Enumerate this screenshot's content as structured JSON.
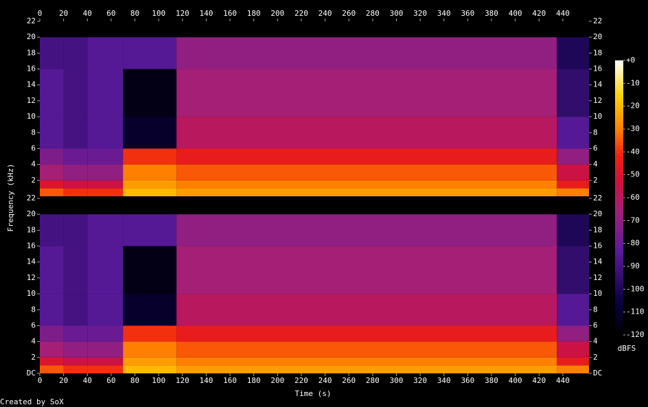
{
  "chart_data": {
    "type": "spectrogram",
    "xlabel": "Time (s)",
    "ylabel": "Frequency (kHz)",
    "xlim": [
      0,
      462
    ],
    "xticks": [
      0,
      20,
      40,
      60,
      80,
      100,
      120,
      140,
      160,
      180,
      200,
      220,
      240,
      260,
      280,
      300,
      320,
      340,
      360,
      380,
      400,
      420,
      440
    ],
    "time_edges": [
      0,
      20,
      40,
      70,
      115,
      435,
      462
    ],
    "freq_edges": [
      0,
      1,
      2,
      4,
      6,
      10,
      16,
      20,
      22
    ],
    "channels": [
      {
        "ylim": [
          0,
          22
        ],
        "yticks": [
          2,
          4,
          6,
          8,
          10,
          12,
          14,
          16,
          18,
          20,
          22
        ],
        "levels": [
          [
            -35,
            -40,
            -40,
            -20,
            -25,
            -30
          ],
          [
            -50,
            -55,
            -55,
            -25,
            -30,
            -45
          ],
          [
            -65,
            -70,
            -70,
            -30,
            -35,
            -55
          ],
          [
            -75,
            -80,
            -80,
            -40,
            -45,
            -70
          ],
          [
            -85,
            -90,
            -85,
            -110,
            -60,
            -85
          ],
          [
            -85,
            -90,
            -85,
            -115,
            -65,
            -95
          ],
          [
            -90,
            -90,
            -85,
            -85,
            -70,
            -100
          ],
          [
            -120,
            -120,
            -120,
            -120,
            -120,
            -120
          ]
        ]
      },
      {
        "ylim": [
          0,
          22
        ],
        "yticks": [
          {
            "value": 0,
            "label": "DC"
          },
          2,
          4,
          6,
          8,
          10,
          12,
          14,
          16,
          18,
          20,
          22
        ],
        "levels": [
          [
            -35,
            -40,
            -40,
            -20,
            -25,
            -30
          ],
          [
            -50,
            -55,
            -55,
            -25,
            -30,
            -45
          ],
          [
            -65,
            -70,
            -70,
            -30,
            -35,
            -55
          ],
          [
            -75,
            -80,
            -80,
            -40,
            -45,
            -70
          ],
          [
            -85,
            -90,
            -85,
            -110,
            -60,
            -85
          ],
          [
            -85,
            -90,
            -85,
            -115,
            -65,
            -95
          ],
          [
            -90,
            -90,
            -85,
            -85,
            -70,
            -100
          ],
          [
            -120,
            -120,
            -120,
            -120,
            -120,
            -120
          ]
        ]
      }
    ],
    "colorbar": {
      "label": "dBFS",
      "lim": [
        -120,
        0
      ],
      "ticks": [
        {
          "value": 0,
          "label": "+0"
        },
        -10,
        -20,
        -30,
        -40,
        -50,
        -60,
        -70,
        -80,
        -90,
        -100,
        -110,
        -120
      ]
    }
  },
  "footer": "Created by SoX"
}
